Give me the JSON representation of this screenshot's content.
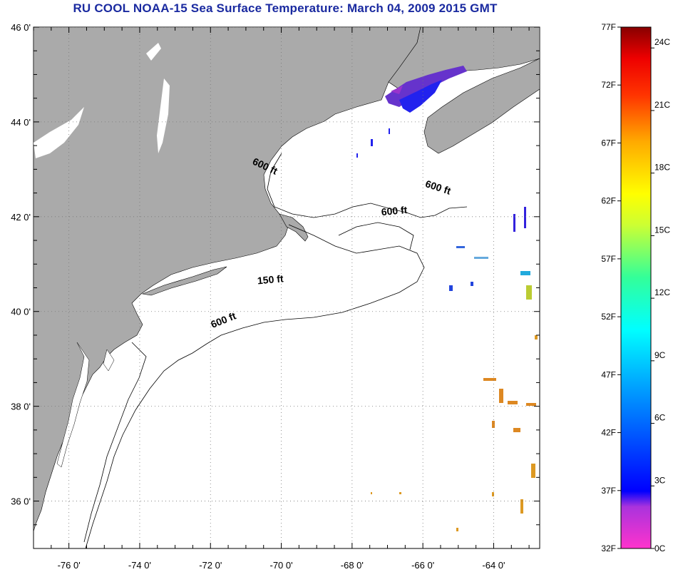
{
  "title": "RU COOL  NOAA-15  Sea Surface Temperature:  March 04, 2009 2015 GMT",
  "map": {
    "lon_range": [
      -77,
      -62.7
    ],
    "lat_range": [
      35,
      46
    ],
    "lat_ticks": [
      {
        "value": 46,
        "label": "46 0'"
      },
      {
        "value": 44,
        "label": "44 0'"
      },
      {
        "value": 42,
        "label": "42 0'"
      },
      {
        "value": 40,
        "label": "40 0'"
      },
      {
        "value": 38,
        "label": "38 0'"
      },
      {
        "value": 36,
        "label": "36 0'"
      }
    ],
    "lon_ticks": [
      {
        "value": -76,
        "label": "-76 0'"
      },
      {
        "value": -74,
        "label": "-74 0'"
      },
      {
        "value": -72,
        "label": "-72 0'"
      },
      {
        "value": -70,
        "label": "-70 0'"
      },
      {
        "value": -68,
        "label": "-68 0'"
      },
      {
        "value": -66,
        "label": "-66 0'"
      },
      {
        "value": -64,
        "label": "-64 0'"
      }
    ],
    "land_color": "#aaaaaa",
    "grid": "dotted",
    "contour_labels": [
      {
        "text": "600 ft",
        "lon": -70.5,
        "lat": 43.0,
        "rotate": 25
      },
      {
        "text": "600 ft",
        "lon": -65.6,
        "lat": 42.55,
        "rotate": 18
      },
      {
        "text": "600 ft",
        "lon": -66.8,
        "lat": 42.05,
        "rotate": -5
      },
      {
        "text": "150 ft",
        "lon": -70.3,
        "lat": 40.6,
        "rotate": -5
      },
      {
        "text": "600 ft",
        "lon": -71.6,
        "lat": 39.75,
        "rotate": -22
      }
    ]
  },
  "colorbar": {
    "min_f": 32,
    "max_f": 77,
    "f_labels": [
      "77F",
      "72F",
      "67F",
      "62F",
      "57F",
      "52F",
      "47F",
      "42F",
      "37F",
      "32F"
    ],
    "c_labels": [
      "24C",
      "21C",
      "18C",
      "15C",
      "12C",
      "9C",
      "6C",
      "3C",
      "0C"
    ]
  }
}
